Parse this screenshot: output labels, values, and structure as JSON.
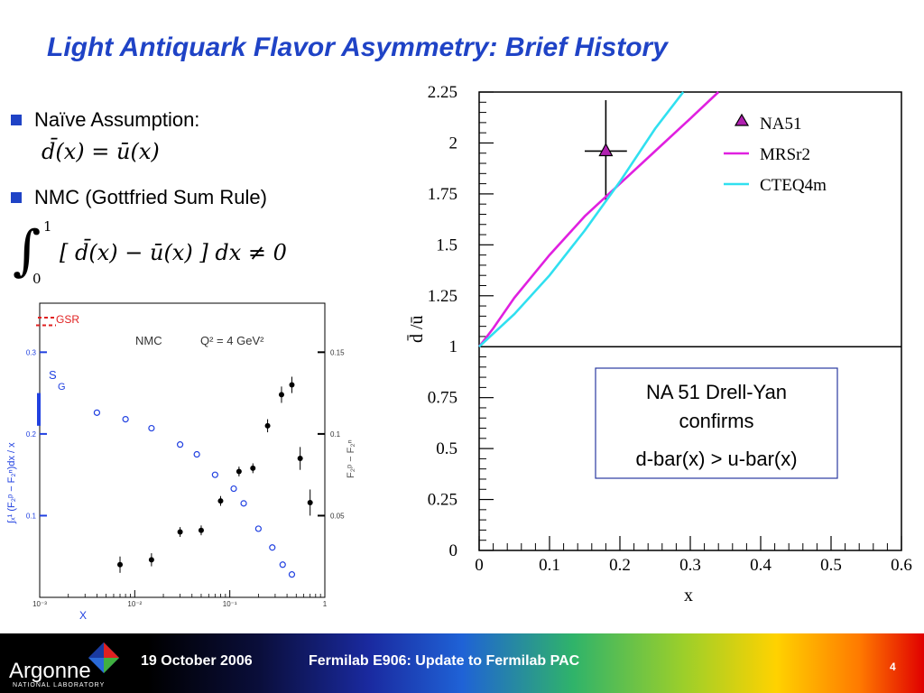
{
  "slide": {
    "title": "Light Antiquark Flavor Asymmetry:  Brief History",
    "bullets": [
      {
        "label": "Naïve Assumption:",
        "formula": "d̄(x) = ū(x)"
      },
      {
        "label": "NMC (Gottfried Sum Rule)",
        "formula": "[ d̄(x) − ū(x) ] dx ≠ 0",
        "integral_lower": "0",
        "integral_upper": "1"
      }
    ],
    "callout": {
      "line1": "NA 51 Drell-Yan",
      "line2": "confirms",
      "line3": "d-bar(x) > u-bar(x)"
    }
  },
  "footer": {
    "logo": "Argonne",
    "logo_sub": "NATIONAL LABORATORY",
    "date": "19 October 2006",
    "event": "Fermilab E906:  Update to Fermilab PAC",
    "page": "4"
  },
  "colors": {
    "title": "#1f43c6",
    "mrsr2": "#e020e0",
    "cteq4m": "#30e0f0",
    "na51_marker": "#b020b0",
    "nmc_blue": "#2040e0"
  },
  "chart_data": [
    {
      "type": "line",
      "xlabel": "x",
      "ylabel": "d̄ /ū",
      "xlim": [
        0,
        0.6
      ],
      "ylim": [
        0,
        2.25
      ],
      "x_ticks": [
        "0",
        "0.1",
        "0.2",
        "0.3",
        "0.4",
        "0.5",
        "0.6"
      ],
      "y_ticks": [
        "0",
        "0.25",
        "0.5",
        "0.75",
        "1",
        "1.25",
        "1.5",
        "1.75",
        "2",
        "2.25"
      ],
      "reference_line": 1,
      "legend_position": "top-right",
      "series": [
        {
          "name": "NA51",
          "kind": "point",
          "points": [
            {
              "x": 0.18,
              "y": 1.96,
              "xerr": 0.03,
              "yerr": 0.25
            }
          ]
        },
        {
          "name": "MRSr2",
          "kind": "line",
          "x": [
            0,
            0.02,
            0.05,
            0.1,
            0.15,
            0.2,
            0.25,
            0.3,
            0.34
          ],
          "y": [
            1.0,
            1.09,
            1.24,
            1.45,
            1.64,
            1.8,
            1.96,
            2.12,
            2.25
          ]
        },
        {
          "name": "CTEQ4m",
          "kind": "line",
          "x": [
            0,
            0.05,
            0.1,
            0.15,
            0.2,
            0.25,
            0.29
          ],
          "y": [
            1.0,
            1.16,
            1.35,
            1.57,
            1.81,
            2.07,
            2.25
          ]
        }
      ]
    },
    {
      "type": "scatter",
      "xlabel": "X",
      "ylabel_left": "∫ₓ¹ (F₂ᵖ − F₂ⁿ)dx / x",
      "ylabel_right": "F₂ᵖ − F₂ⁿ",
      "annotation": "NMC",
      "annotation_q2": "Q² = 4 GeV²",
      "legend": "GSR",
      "sg_label_1": "S",
      "sg_label_2": "G",
      "xscale": "log",
      "xlim": [
        0.001,
        1
      ],
      "x_ticks": [
        "10⁻³",
        "10⁻²",
        "10⁻¹",
        "1"
      ],
      "left_ylim": [
        0,
        0.36
      ],
      "left_ticks": [
        "0.1",
        "0.2",
        "0.3"
      ],
      "right_ylim": [
        0,
        0.18
      ],
      "right_ticks": [
        "0.05",
        "0.1",
        "0.15"
      ],
      "gsr_value": 0.333,
      "sg_band": [
        0.21,
        0.25
      ],
      "series": [
        {
          "name": "integral",
          "axis": "left",
          "marker": "open-circle",
          "x": [
            0.004,
            0.008,
            0.015,
            0.03,
            0.045,
            0.07,
            0.11,
            0.14,
            0.2,
            0.28,
            0.36,
            0.45
          ],
          "y": [
            0.226,
            0.218,
            0.207,
            0.187,
            0.175,
            0.15,
            0.133,
            0.115,
            0.084,
            0.061,
            0.04,
            0.028
          ]
        },
        {
          "name": "difference",
          "axis": "right",
          "marker": "filled-circle",
          "x": [
            0.007,
            0.015,
            0.03,
            0.05,
            0.08,
            0.125,
            0.175,
            0.25,
            0.35,
            0.45,
            0.55,
            0.7
          ],
          "y": [
            0.02,
            0.023,
            0.04,
            0.041,
            0.059,
            0.077,
            0.079,
            0.105,
            0.124,
            0.13,
            0.085,
            0.058
          ],
          "yerr": [
            0.005,
            0.004,
            0.003,
            0.003,
            0.003,
            0.003,
            0.003,
            0.004,
            0.005,
            0.005,
            0.007,
            0.008
          ]
        }
      ]
    }
  ]
}
